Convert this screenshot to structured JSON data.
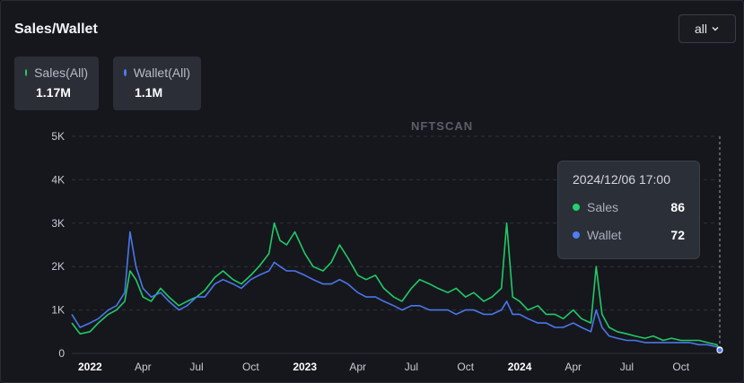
{
  "header": {
    "title": "Sales/Wallet",
    "range_label": "all"
  },
  "summary": [
    {
      "label": "Sales(All)",
      "value": "1.17M",
      "color": "#22d46b"
    },
    {
      "label": "Wallet(All)",
      "value": "1.1M",
      "color": "#4d7cf5"
    }
  ],
  "watermark": "NFTSCAN",
  "tooltip": {
    "date": "2024/12/06 17:00",
    "rows": [
      {
        "name": "Sales",
        "value": "86",
        "color": "#22d46b"
      },
      {
        "name": "Wallet",
        "value": "72",
        "color": "#4d7cf5"
      }
    ]
  },
  "chart_data": {
    "type": "line",
    "grid": true,
    "legend": "top-left",
    "ylim": [
      0,
      5000
    ],
    "xlim": [
      "2021-12-01",
      "2024-12-06"
    ],
    "y_ticks": [
      0,
      1000,
      2000,
      3000,
      4000,
      5000
    ],
    "y_tick_labels": [
      "0",
      "1K",
      "2K",
      "3K",
      "4K",
      "5K"
    ],
    "x_ticks": [
      {
        "date": "2022-01-01",
        "label": "2022",
        "bold": true
      },
      {
        "date": "2022-04-01",
        "label": "Apr",
        "bold": false
      },
      {
        "date": "2022-07-01",
        "label": "Jul",
        "bold": false
      },
      {
        "date": "2022-10-01",
        "label": "Oct",
        "bold": false
      },
      {
        "date": "2023-01-01",
        "label": "2023",
        "bold": true
      },
      {
        "date": "2023-04-01",
        "label": "Apr",
        "bold": false
      },
      {
        "date": "2023-07-01",
        "label": "Jul",
        "bold": false
      },
      {
        "date": "2023-10-01",
        "label": "Oct",
        "bold": false
      },
      {
        "date": "2024-01-01",
        "label": "2024",
        "bold": true
      },
      {
        "date": "2024-04-01",
        "label": "Apr",
        "bold": false
      },
      {
        "date": "2024-07-01",
        "label": "Jul",
        "bold": false
      },
      {
        "date": "2024-10-01",
        "label": "Oct",
        "bold": false
      }
    ],
    "series": [
      {
        "name": "Sales",
        "color": "#22d46b",
        "x": [
          "2021-12-01",
          "2021-12-15",
          "2022-01-01",
          "2022-01-15",
          "2022-02-01",
          "2022-02-15",
          "2022-03-01",
          "2022-03-10",
          "2022-03-20",
          "2022-04-01",
          "2022-04-15",
          "2022-05-01",
          "2022-05-15",
          "2022-06-01",
          "2022-06-15",
          "2022-07-01",
          "2022-07-15",
          "2022-08-01",
          "2022-08-15",
          "2022-09-01",
          "2022-09-15",
          "2022-10-01",
          "2022-10-15",
          "2022-11-01",
          "2022-11-10",
          "2022-11-20",
          "2022-12-01",
          "2022-12-15",
          "2023-01-01",
          "2023-01-15",
          "2023-02-01",
          "2023-02-15",
          "2023-03-01",
          "2023-03-15",
          "2023-04-01",
          "2023-04-15",
          "2023-05-01",
          "2023-05-15",
          "2023-06-01",
          "2023-06-15",
          "2023-07-01",
          "2023-07-15",
          "2023-08-01",
          "2023-08-15",
          "2023-09-01",
          "2023-09-15",
          "2023-10-01",
          "2023-10-15",
          "2023-11-01",
          "2023-11-15",
          "2023-12-01",
          "2023-12-10",
          "2023-12-20",
          "2024-01-01",
          "2024-01-15",
          "2024-02-01",
          "2024-02-15",
          "2024-03-01",
          "2024-03-15",
          "2024-04-01",
          "2024-04-15",
          "2024-05-01",
          "2024-05-10",
          "2024-05-20",
          "2024-06-01",
          "2024-06-15",
          "2024-07-01",
          "2024-07-15",
          "2024-08-01",
          "2024-08-15",
          "2024-09-01",
          "2024-09-15",
          "2024-10-01",
          "2024-10-15",
          "2024-11-01",
          "2024-11-15",
          "2024-12-01",
          "2024-12-06"
        ],
        "values": [
          700,
          450,
          500,
          700,
          900,
          1000,
          1200,
          1900,
          1700,
          1300,
          1200,
          1500,
          1300,
          1100,
          1200,
          1300,
          1450,
          1750,
          1900,
          1700,
          1600,
          1800,
          2000,
          2300,
          3000,
          2600,
          2500,
          2800,
          2300,
          2000,
          1900,
          2100,
          2500,
          2200,
          1800,
          1700,
          1800,
          1500,
          1300,
          1200,
          1500,
          1700,
          1600,
          1500,
          1400,
          1500,
          1300,
          1400,
          1200,
          1300,
          1500,
          3000,
          1300,
          1200,
          1000,
          1100,
          900,
          900,
          800,
          1000,
          800,
          700,
          2000,
          900,
          600,
          500,
          450,
          400,
          350,
          400,
          300,
          350,
          300,
          300,
          300,
          250,
          200,
          86
        ]
      },
      {
        "name": "Wallet",
        "color": "#4d7cf5",
        "x": [
          "2021-12-01",
          "2021-12-15",
          "2022-01-01",
          "2022-01-15",
          "2022-02-01",
          "2022-02-15",
          "2022-03-01",
          "2022-03-10",
          "2022-03-20",
          "2022-04-01",
          "2022-04-15",
          "2022-05-01",
          "2022-05-15",
          "2022-06-01",
          "2022-06-15",
          "2022-07-01",
          "2022-07-15",
          "2022-08-01",
          "2022-08-15",
          "2022-09-01",
          "2022-09-15",
          "2022-10-01",
          "2022-10-15",
          "2022-11-01",
          "2022-11-10",
          "2022-11-20",
          "2022-12-01",
          "2022-12-15",
          "2023-01-01",
          "2023-01-15",
          "2023-02-01",
          "2023-02-15",
          "2023-03-01",
          "2023-03-15",
          "2023-04-01",
          "2023-04-15",
          "2023-05-01",
          "2023-05-15",
          "2023-06-01",
          "2023-06-15",
          "2023-07-01",
          "2023-07-15",
          "2023-08-01",
          "2023-08-15",
          "2023-09-01",
          "2023-09-15",
          "2023-10-01",
          "2023-10-15",
          "2023-11-01",
          "2023-11-15",
          "2023-12-01",
          "2023-12-10",
          "2023-12-20",
          "2024-01-01",
          "2024-01-15",
          "2024-02-01",
          "2024-02-15",
          "2024-03-01",
          "2024-03-15",
          "2024-04-01",
          "2024-04-15",
          "2024-05-01",
          "2024-05-10",
          "2024-05-20",
          "2024-06-01",
          "2024-06-15",
          "2024-07-01",
          "2024-07-15",
          "2024-08-01",
          "2024-08-15",
          "2024-09-01",
          "2024-09-15",
          "2024-10-01",
          "2024-10-15",
          "2024-11-01",
          "2024-11-15",
          "2024-12-01",
          "2024-12-06"
        ],
        "values": [
          900,
          600,
          700,
          800,
          1000,
          1100,
          1400,
          2800,
          2000,
          1500,
          1300,
          1400,
          1200,
          1000,
          1100,
          1300,
          1300,
          1600,
          1700,
          1600,
          1500,
          1700,
          1800,
          1900,
          2100,
          2000,
          1900,
          1900,
          1800,
          1700,
          1600,
          1600,
          1700,
          1600,
          1400,
          1300,
          1300,
          1200,
          1100,
          1000,
          1100,
          1100,
          1000,
          1000,
          1000,
          900,
          1000,
          1000,
          900,
          900,
          1000,
          1200,
          900,
          900,
          800,
          700,
          700,
          600,
          600,
          700,
          600,
          500,
          1000,
          600,
          400,
          350,
          300,
          300,
          250,
          250,
          250,
          250,
          250,
          250,
          200,
          200,
          150,
          72
        ]
      }
    ],
    "hover_date": "2024-12-06"
  }
}
